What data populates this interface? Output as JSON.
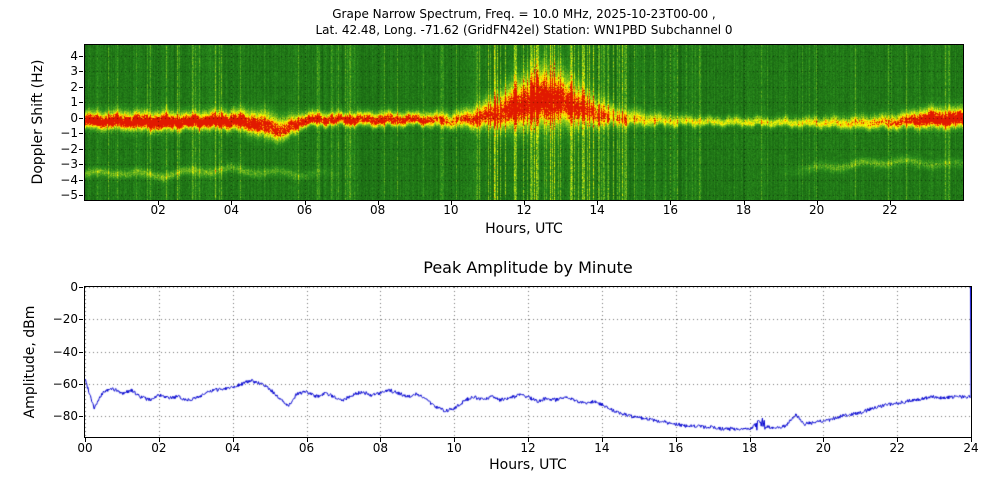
{
  "chart_data": [
    {
      "type": "heatmap",
      "name": "grape-narrow-spectrum",
      "title_line1": "Grape Narrow Spectrum, Freq. = 10.0 MHz, 2025-10-23T00-00 ,",
      "title_line2": "Lat.  42.48, Long. -71.62 (GridFN42el) Station: WN1PBD Subchannel 0",
      "xlabel": "Hours, UTC",
      "ylabel": "Doppler Shift (Hz)",
      "xlim": [
        0,
        24
      ],
      "ylim": [
        -5.3,
        4.7
      ],
      "xticks": [
        "02",
        "04",
        "06",
        "08",
        "10",
        "12",
        "14",
        "16",
        "18",
        "20",
        "22"
      ],
      "xtick_values": [
        2,
        4,
        6,
        8,
        10,
        12,
        14,
        16,
        18,
        20,
        22
      ],
      "yticks": [
        "4",
        "3",
        "2",
        "1",
        "0",
        "−1",
        "−2",
        "−3",
        "−4",
        "−5"
      ],
      "ytick_values": [
        4,
        3,
        2,
        1,
        0,
        -1,
        -2,
        -3,
        -4,
        -5
      ],
      "grid": "dotted",
      "colormap": "green-yellow-red",
      "colormap_stops": [
        [
          0.0,
          [
            10,
            70,
            10
          ]
        ],
        [
          0.4,
          [
            45,
            145,
            30
          ]
        ],
        [
          0.62,
          [
            140,
            200,
            30
          ]
        ],
        [
          0.8,
          [
            255,
            255,
            0
          ]
        ],
        [
          0.93,
          [
            255,
            140,
            0
          ]
        ],
        [
          1.0,
          [
            225,
            25,
            0
          ]
        ]
      ],
      "carrier_track": {
        "hours": [
          0,
          1,
          2,
          3,
          4,
          4.5,
          5,
          5.4,
          6,
          7,
          8,
          9,
          10,
          10.5,
          11,
          11.5,
          12,
          12.5,
          13,
          13.5,
          14,
          14.5,
          15,
          16,
          17,
          18,
          19,
          20,
          21,
          22,
          22.5,
          23,
          24
        ],
        "center_hz": [
          -0.2,
          -0.25,
          -0.3,
          -0.25,
          -0.2,
          -0.35,
          -0.6,
          -0.85,
          -0.15,
          -0.1,
          -0.15,
          -0.1,
          -0.2,
          -0.1,
          0.1,
          0.4,
          0.8,
          1.1,
          1.0,
          0.6,
          0.2,
          0.0,
          -0.1,
          -0.2,
          -0.25,
          -0.25,
          -0.3,
          -0.3,
          -0.35,
          -0.3,
          -0.2,
          -0.1,
          -0.1
        ],
        "spread_hz": [
          0.5,
          0.55,
          0.6,
          0.5,
          0.6,
          0.7,
          0.8,
          0.7,
          0.45,
          0.4,
          0.45,
          0.4,
          0.5,
          0.6,
          0.9,
          1.3,
          1.6,
          1.8,
          1.6,
          1.2,
          0.9,
          0.6,
          0.5,
          0.35,
          0.3,
          0.3,
          0.3,
          0.35,
          0.4,
          0.45,
          0.5,
          0.6,
          0.6
        ],
        "intensity": [
          1.0,
          0.95,
          1.0,
          0.95,
          1.0,
          0.9,
          0.85,
          0.8,
          0.9,
          0.85,
          0.9,
          0.85,
          0.7,
          0.75,
          0.8,
          0.85,
          0.9,
          0.9,
          0.85,
          0.8,
          0.7,
          0.6,
          0.55,
          0.5,
          0.5,
          0.5,
          0.5,
          0.55,
          0.6,
          0.7,
          0.8,
          1.0,
          1.0
        ]
      },
      "secondary_track": {
        "hours": [
          0,
          1,
          2,
          3,
          4,
          5,
          6,
          7,
          19,
          20,
          21,
          22,
          23,
          24
        ],
        "center_hz": [
          -3.6,
          -3.5,
          -3.7,
          -3.4,
          -3.3,
          -3.5,
          -3.6,
          -3.6,
          -3.4,
          -3.2,
          -3.0,
          -2.8,
          -2.9,
          -3.0
        ],
        "intensity": [
          0.35,
          0.3,
          0.35,
          0.3,
          0.3,
          0.25,
          0.2,
          0.0,
          0.0,
          0.25,
          0.3,
          0.3,
          0.25,
          0.2
        ]
      },
      "stripe_regions": [
        {
          "start": 0,
          "end": 10.8,
          "prob": 0.12,
          "boost": 0.22
        },
        {
          "start": 10.8,
          "end": 14.8,
          "prob": 0.38,
          "boost": 0.38
        },
        {
          "start": 14.8,
          "end": 16.2,
          "prob": 0.18,
          "boost": 0.28
        },
        {
          "start": 16.2,
          "end": 24,
          "prob": 0.07,
          "boost": 0.2
        }
      ]
    },
    {
      "type": "line",
      "name": "peak-amplitude-by-minute",
      "title": "Peak Amplitude by Minute",
      "xlabel": "Hours, UTC",
      "ylabel": "Amplitude, dBm",
      "xlim": [
        0,
        24
      ],
      "ylim": [
        -93,
        0
      ],
      "xticks": [
        "00",
        "02",
        "04",
        "06",
        "08",
        "10",
        "12",
        "14",
        "16",
        "18",
        "20",
        "22",
        "24"
      ],
      "xtick_values": [
        0,
        2,
        4,
        6,
        8,
        10,
        12,
        14,
        16,
        18,
        20,
        22,
        24
      ],
      "yticks": [
        "0",
        "−20",
        "−40",
        "−60",
        "−80"
      ],
      "ytick_values": [
        0,
        -20,
        -40,
        -60,
        -80
      ],
      "grid": "dotted",
      "line_color": "#0000d0",
      "x_step_hours": 0.25,
      "end_spike_to_dbm": 0,
      "values": [
        -57,
        -75,
        -65,
        -63,
        -66,
        -64,
        -68,
        -70,
        -67,
        -69,
        -68,
        -70,
        -69,
        -66,
        -64,
        -63,
        -62,
        -60,
        -58,
        -60,
        -63,
        -69,
        -74,
        -66,
        -65,
        -68,
        -66,
        -68,
        -70,
        -67,
        -65,
        -67,
        -66,
        -64,
        -66,
        -68,
        -66,
        -70,
        -74,
        -77,
        -75,
        -71,
        -68,
        -70,
        -68,
        -70,
        -69,
        -67,
        -68,
        -71,
        -69,
        -70,
        -68,
        -70,
        -72,
        -71,
        -73,
        -76,
        -78,
        -80,
        -81,
        -82,
        -83,
        -84,
        -85,
        -86,
        -86,
        -87,
        -87,
        -88,
        -88,
        -88,
        -88,
        -84,
        -87,
        -87,
        -86,
        -79,
        -85,
        -84,
        -83,
        -82,
        -80,
        -79,
        -78,
        -76,
        -74,
        -73,
        -72,
        -71,
        -70,
        -69,
        -68,
        -69,
        -68,
        -68,
        -68
      ]
    }
  ]
}
